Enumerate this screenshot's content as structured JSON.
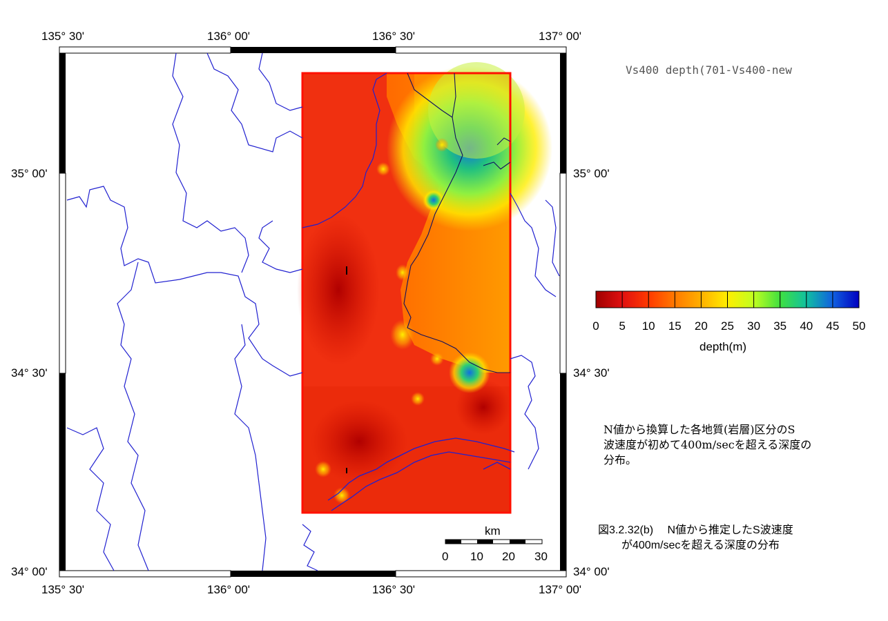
{
  "title": "Vs400 depth(701-Vs400-new",
  "lon_labels": [
    "135° 30'",
    "136° 00'",
    "136° 30'",
    "137° 00'"
  ],
  "lat_labels": [
    "35° 00'",
    "34° 30'",
    "34° 00'"
  ],
  "colorbar": {
    "label": "depth(m)",
    "ticks": [
      "0",
      "5",
      "10",
      "15",
      "20",
      "25",
      "30",
      "35",
      "40",
      "45",
      "50"
    ],
    "colors": [
      "#a00000",
      "#e01010",
      "#ff3a00",
      "#ff7a00",
      "#ffb000",
      "#ffee00",
      "#c0ff20",
      "#40e040",
      "#10c0a0",
      "#1060e0",
      "#0000c0"
    ]
  },
  "scale_bar": {
    "unit": "km",
    "ticks": [
      "0",
      "10",
      "20",
      "30"
    ]
  },
  "description_note": {
    "line1": "N値から換算した各地質(岩層)区分のS",
    "line2": "波速度が初めて400m/secを超える深度の",
    "line3": "分布。"
  },
  "figure_caption": {
    "line1": "図3.2.32(b)　 N値から推定したS波速度",
    "line2": "が400m/secを超える深度の分布"
  }
}
